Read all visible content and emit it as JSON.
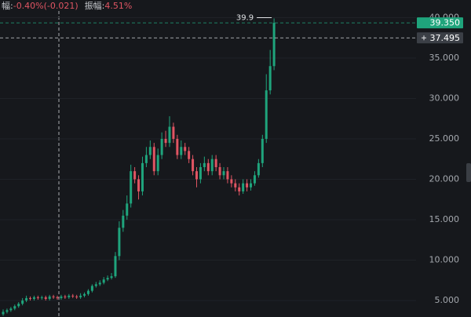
{
  "chart_data": {
    "type": "candlestick",
    "header": [
      {
        "label": "幅:",
        "value": "-0.40%(-0.021)"
      },
      {
        "label": "振幅:",
        "value": "4.51%"
      }
    ],
    "open": [
      3.3,
      3.6,
      3.8,
      4.0,
      4.3,
      4.6,
      5.0,
      5.3,
      5.2,
      5.4,
      5.3,
      5.4,
      5.2,
      5.5,
      5.4,
      5.3,
      5.5,
      5.4,
      5.6,
      5.5,
      5.4,
      5.6,
      5.8,
      6.2,
      6.8,
      7.0,
      7.2,
      7.6,
      7.8,
      8.0,
      10.5,
      14.0,
      15.5,
      17.0,
      21.0,
      20.0,
      18.5,
      22.0,
      23.0,
      24.0,
      21.0,
      23.0,
      25.0,
      24.5,
      26.5,
      25.0,
      23.0,
      24.0,
      23.5,
      22.5,
      21.0,
      20.0,
      21.5,
      22.0,
      21.0,
      22.5,
      21.5,
      20.5,
      21.0,
      20.0,
      19.5,
      19.0,
      18.5,
      19.5,
      19.0,
      19.5,
      20.5,
      22.0,
      25.0,
      31.0,
      34.0
    ],
    "high": [
      3.9,
      4.0,
      4.2,
      4.5,
      4.8,
      5.3,
      5.6,
      5.5,
      5.6,
      5.6,
      5.6,
      5.6,
      5.7,
      5.7,
      5.6,
      5.7,
      5.7,
      5.8,
      5.8,
      5.7,
      5.9,
      6.0,
      6.4,
      7.0,
      7.3,
      7.5,
      7.9,
      8.1,
      8.4,
      11.0,
      14.8,
      16.2,
      18.0,
      21.8,
      21.5,
      20.5,
      22.8,
      24.0,
      24.8,
      24.5,
      23.8,
      25.8,
      26.0,
      27.8,
      27.0,
      25.5,
      24.8,
      24.5,
      24.0,
      23.0,
      21.5,
      22.0,
      22.8,
      22.5,
      23.0,
      23.0,
      22.0,
      21.5,
      21.5,
      20.5,
      20.0,
      19.5,
      20.0,
      20.0,
      20.0,
      21.0,
      22.5,
      25.5,
      33.0,
      36.0,
      39.9
    ],
    "low": [
      3.1,
      3.4,
      3.6,
      3.8,
      4.1,
      4.4,
      4.8,
      5.0,
      5.0,
      5.1,
      5.1,
      5.0,
      5.0,
      5.2,
      5.1,
      5.1,
      5.2,
      5.2,
      5.3,
      5.2,
      5.2,
      5.4,
      5.6,
      6.0,
      6.6,
      6.8,
      7.0,
      7.4,
      7.6,
      7.8,
      10.0,
      13.5,
      15.0,
      16.5,
      19.5,
      17.5,
      18.0,
      21.5,
      22.5,
      20.5,
      20.5,
      22.5,
      24.0,
      24.0,
      24.5,
      22.5,
      22.5,
      23.0,
      22.0,
      20.5,
      19.0,
      19.5,
      21.0,
      20.5,
      20.5,
      21.0,
      20.0,
      20.0,
      19.5,
      19.0,
      18.5,
      18.0,
      18.2,
      18.5,
      18.6,
      19.2,
      20.2,
      21.5,
      24.5,
      30.5,
      33.5
    ],
    "close": [
      3.6,
      3.8,
      4.0,
      4.3,
      4.6,
      5.0,
      5.3,
      5.2,
      5.4,
      5.3,
      5.4,
      5.2,
      5.5,
      5.4,
      5.3,
      5.5,
      5.4,
      5.6,
      5.5,
      5.4,
      5.6,
      5.8,
      6.2,
      6.8,
      7.0,
      7.2,
      7.6,
      7.8,
      8.0,
      10.5,
      14.0,
      15.5,
      17.0,
      21.0,
      20.0,
      18.5,
      22.0,
      23.0,
      24.0,
      21.0,
      23.0,
      25.0,
      24.5,
      26.5,
      25.0,
      23.0,
      24.0,
      23.5,
      22.5,
      21.0,
      20.0,
      21.5,
      22.0,
      21.0,
      22.5,
      21.5,
      20.5,
      21.0,
      20.0,
      19.5,
      19.0,
      18.5,
      19.5,
      19.0,
      19.5,
      20.5,
      22.0,
      25.0,
      31.0,
      34.0,
      39.35
    ],
    "up_color": "#1fa47c",
    "down_color": "#e05563",
    "ylim": [
      2.96,
      42.18
    ],
    "yticks": [
      {
        "value": 5,
        "label": "5.000"
      },
      {
        "value": 10,
        "label": "10.000"
      },
      {
        "value": 15,
        "label": "15.000"
      },
      {
        "value": 20,
        "label": "20.000"
      },
      {
        "value": 25,
        "label": "25.000"
      },
      {
        "value": 30,
        "label": "30.000"
      },
      {
        "value": 35,
        "label": "35.000"
      },
      {
        "value": 40,
        "label": "40.000"
      }
    ],
    "last_price": {
      "value": 39.35,
      "label": "39.350"
    },
    "crosshair": {
      "value": 37.495,
      "label": "37.495"
    },
    "high_marker": 39.9,
    "grid": true
  }
}
